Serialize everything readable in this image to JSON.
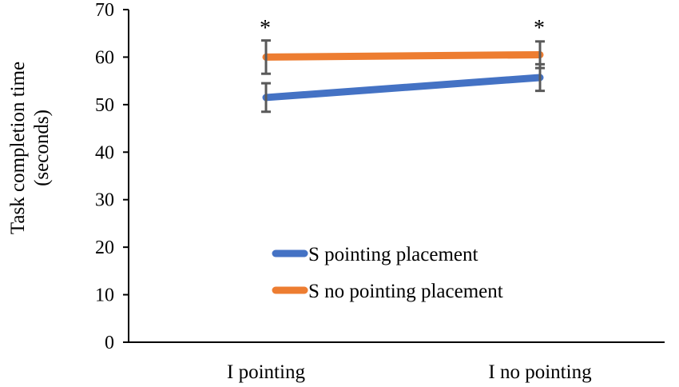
{
  "chart_data": {
    "type": "line",
    "title": "",
    "xlabel": "",
    "ylabel": "Task completion time\n(seconds)",
    "categories": [
      "I pointing",
      "I no pointing"
    ],
    "ylim": [
      0,
      70
    ],
    "yticks": [
      0,
      10,
      20,
      30,
      40,
      50,
      60,
      70
    ],
    "grid": false,
    "legend_position": "inside-lower-center",
    "series": [
      {
        "name": "S pointing placement",
        "color": "#4472C4",
        "values": [
          51.5,
          55.7
        ],
        "error": [
          3,
          2.8
        ]
      },
      {
        "name": "S no pointing placement",
        "color": "#ED7D31",
        "values": [
          60,
          60.5
        ],
        "error": [
          3.5,
          2.8
        ]
      }
    ],
    "significance_markers": [
      "*",
      "*"
    ],
    "errorbar_color": "#595959"
  }
}
